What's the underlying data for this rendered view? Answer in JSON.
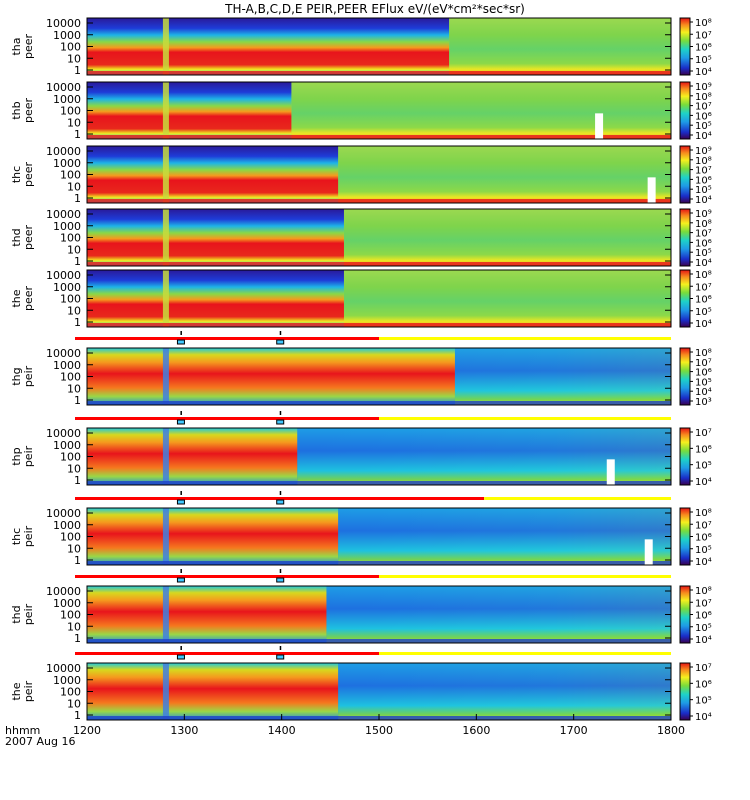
{
  "chart_data": {
    "type": "heatmap",
    "title": "TH-A,B,C,D,E PEIR,PEER EFlux eV/(eV*cm²*sec*sr)",
    "x_tick_labels": [
      "1200",
      "1300",
      "1400",
      "1500",
      "1600",
      "1700",
      "1800"
    ],
    "x_range_hhmm": [
      "1200",
      "1800"
    ],
    "x_label_lines": [
      "hhmm",
      "2007 Aug 16"
    ],
    "y_tick_labels": [
      "10000",
      "1000",
      "100",
      "10",
      "1"
    ],
    "panels": [
      {
        "probe": "tha",
        "product": "peer",
        "colorbar_ticks": [
          "10⁸",
          "10⁷",
          "10⁶",
          "10⁵",
          "10⁴"
        ]
      },
      {
        "probe": "thb",
        "product": "peer",
        "colorbar_ticks": [
          "10⁹",
          "10⁸",
          "10⁷",
          "10⁶",
          "10⁵",
          "10⁴"
        ]
      },
      {
        "probe": "thc",
        "product": "peer",
        "colorbar_ticks": [
          "10⁹",
          "10⁸",
          "10⁷",
          "10⁶",
          "10⁵",
          "10⁴"
        ]
      },
      {
        "probe": "thd",
        "product": "peer",
        "colorbar_ticks": [
          "10⁹",
          "10⁸",
          "10⁷",
          "10⁶",
          "10⁵",
          "10⁴"
        ]
      },
      {
        "probe": "the",
        "product": "peer",
        "colorbar_ticks": [
          "10⁸",
          "10⁷",
          "10⁶",
          "10⁵",
          "10⁴"
        ]
      },
      {
        "probe": "thg",
        "product": "peir",
        "colorbar_ticks": [
          "10⁸",
          "10⁷",
          "10⁶",
          "10⁵",
          "10⁴",
          "10³"
        ]
      },
      {
        "probe": "thp",
        "product": "peir",
        "colorbar_ticks": [
          "10⁷",
          "10⁶",
          "10⁵",
          "10⁴"
        ]
      },
      {
        "probe": "thc",
        "product": "peir",
        "colorbar_ticks": [
          "10⁸",
          "10⁷",
          "10⁶",
          "10⁵",
          "10⁴"
        ]
      },
      {
        "probe": "thd",
        "product": "peir",
        "colorbar_ticks": [
          "10⁸",
          "10⁷",
          "10⁶",
          "10⁵",
          "10⁴"
        ]
      },
      {
        "probe": "the",
        "product": "peir",
        "colorbar_ticks": [
          "10⁷",
          "10⁶",
          "10⁵",
          "10⁴"
        ]
      }
    ],
    "colors": {
      "red": "#e8141c",
      "orange": "#f7941d",
      "yellow": "#f2f01e",
      "green": "#7ad34a",
      "cyan": "#1ec8e0",
      "blue": "#1e64e6",
      "navy": "#2020a0",
      "mode_red": "#ff0000",
      "mode_yellow": "#ffff00"
    }
  }
}
